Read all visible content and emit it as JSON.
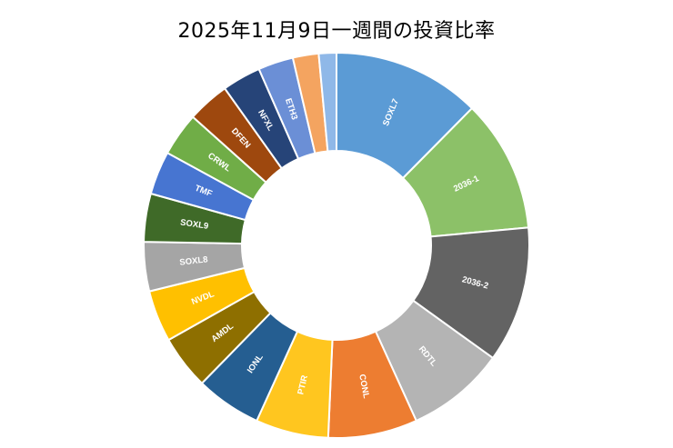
{
  "chart_data": {
    "type": "pie",
    "title": "2025年11月9日一週間の投資比率",
    "categories": [
      "SOXL7",
      "2036-1",
      "2036-2",
      "RDTL",
      "CONL",
      "PTIR",
      "IONL",
      "AMDL",
      "NVDL",
      "SOXL8",
      "SOXL9",
      "TMF",
      "CRWL",
      "DFEN",
      "NFXL",
      "ETH3",
      "",
      ""
    ],
    "values": [
      12.6,
      11.3,
      11.6,
      8.4,
      7.6,
      6.2,
      5.6,
      4.6,
      4.4,
      4.2,
      4.1,
      3.7,
      3.7,
      3.6,
      3.3,
      3.0,
      2.2,
      1.5
    ],
    "colors": [
      "#5b9bd5",
      "#8cc168",
      "#636363",
      "#b4b4b4",
      "#ed7d31",
      "#ffc61f",
      "#255e91",
      "#8e6f00",
      "#ffc000",
      "#a5a5a5",
      "#3f6a28",
      "#4775d1",
      "#70ad47",
      "#9e480e",
      "#264478",
      "#6b8fd6",
      "#f4a460",
      "#8fb8e8"
    ],
    "legend": false,
    "donut": true
  }
}
